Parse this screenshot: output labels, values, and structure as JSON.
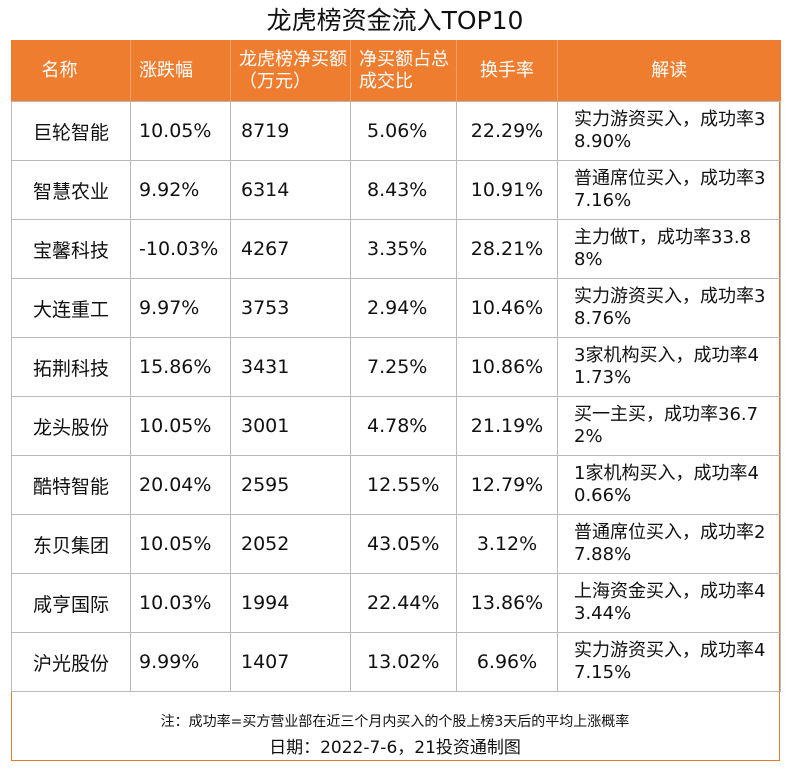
{
  "title": "龙虎榜资金流入TOP10",
  "header": {
    "name": "名称",
    "change": "涨跌幅",
    "net_buy": "龙虎榜净买额（万元）",
    "ratio": "净买额占总成交比",
    "turnover": "换手率",
    "comment": "解读"
  },
  "rows": [
    {
      "name": "巨轮智能",
      "change": "10.05%",
      "net_buy": "8719",
      "ratio": "5.06%",
      "turnover": "22.29%",
      "comment": "实力游资买入，成功率38.90%"
    },
    {
      "name": "智慧农业",
      "change": "9.92%",
      "net_buy": "6314",
      "ratio": "8.43%",
      "turnover": "10.91%",
      "comment": "普通席位买入，成功率37.16%"
    },
    {
      "name": "宝馨科技",
      "change": "-10.03%",
      "net_buy": "4267",
      "ratio": "3.35%",
      "turnover": "28.21%",
      "comment": "主力做T，成功率33.88%"
    },
    {
      "name": "大连重工",
      "change": "9.97%",
      "net_buy": "3753",
      "ratio": "2.94%",
      "turnover": "10.46%",
      "comment": "实力游资买入，成功率38.76%"
    },
    {
      "name": "拓荆科技",
      "change": "15.86%",
      "net_buy": "3431",
      "ratio": "7.25%",
      "turnover": "10.86%",
      "comment": "3家机构买入，成功率41.73%"
    },
    {
      "name": "龙头股份",
      "change": "10.05%",
      "net_buy": "3001",
      "ratio": "4.78%",
      "turnover": "21.19%",
      "comment": "买一主买，成功率36.72%"
    },
    {
      "name": "酷特智能",
      "change": "20.04%",
      "net_buy": "2595",
      "ratio": "12.55%",
      "turnover": "12.79%",
      "comment": "1家机构买入，成功率40.66%"
    },
    {
      "name": "东贝集团",
      "change": "10.05%",
      "net_buy": "2052",
      "ratio": "43.05%",
      "turnover": "3.12%",
      "comment": "普通席位买入，成功率27.88%"
    },
    {
      "name": "咸亨国际",
      "change": "10.03%",
      "net_buy": "1994",
      "ratio": "22.44%",
      "turnover": "13.86%",
      "comment": "上海资金买入，成功率43.44%"
    },
    {
      "name": "沪光股份",
      "change": "9.99%",
      "net_buy": "1407",
      "ratio": "13.02%",
      "turnover": "6.96%",
      "comment": "实力游资买入，成功率47.15%"
    }
  ],
  "note": "注：成功率=买方营业部在近三个月内买入的个股上榜3天后的平均上涨概率",
  "footer": "日期：2022-7-6，21投资通制图"
}
